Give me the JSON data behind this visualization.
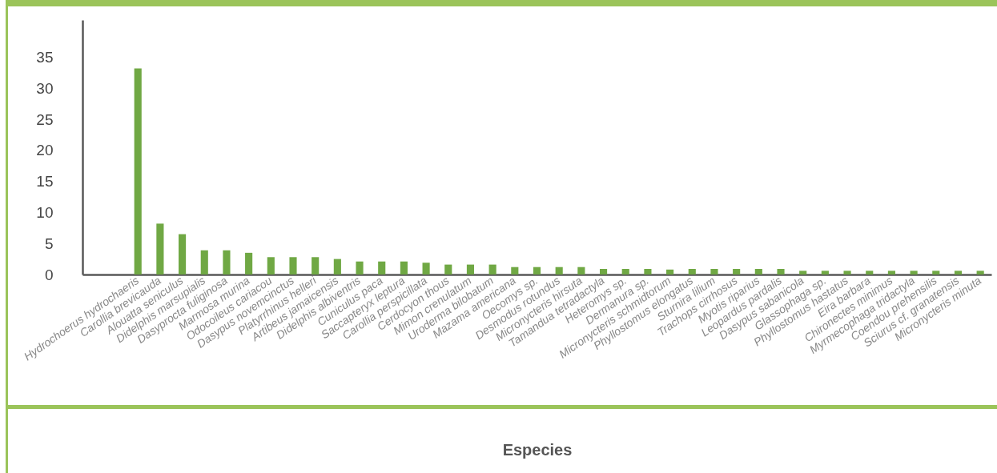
{
  "chart_data": {
    "type": "bar",
    "xlabel": "Especies",
    "categories": [
      null,
      null,
      "Hydrochoerus hydrochaeris",
      "Carollia brevicauda",
      "Alouatta seniculus",
      "Didelphis marsupialis",
      "Dasyprocta fuliginosa",
      "Marmosa murina",
      "Odocoileus cariacou",
      "Dasypus novemcinctus",
      "Platyrrhinus helleri",
      "Artibeus jamaicensis",
      "Didelphis albiventris",
      "Cuniculus paca",
      "Saccapteryx leptura",
      "Carollia perspicillata",
      "Cerdocyon thous",
      "Mimon crenulatum",
      "Uroderma bilobatum",
      "Mazama americana",
      "Oecomys sp.",
      "Desmodus rotundus",
      "Micronycteris hirsuta",
      "Tamandua tetradactyla",
      "Heteromys sp.",
      "Dermanura sp.",
      "Micronycteris schmidtorum",
      "Phyllostomus elongatus",
      "Sturnira lilium",
      "Trachops cirrhosus",
      "Myotis riparius",
      "Leopardus pardalis",
      "Dasypus sabanicola",
      "Glassophaga sp.",
      "Phyllostomus hastatus",
      "Eira barbara",
      "Chironectes minimus",
      "Myrmecophaga tridactyla",
      "Coendou prehensilis",
      "Sciurus cf. granatensis",
      "Micronycteris minuta"
    ],
    "values": [
      null,
      null,
      33.2,
      8.2,
      6.5,
      3.9,
      3.9,
      3.5,
      2.8,
      2.8,
      2.8,
      2.5,
      2.1,
      2.1,
      2.1,
      1.9,
      1.6,
      1.6,
      1.6,
      1.2,
      1.2,
      1.2,
      1.2,
      0.9,
      0.9,
      0.9,
      0.8,
      0.9,
      0.9,
      0.9,
      0.9,
      0.9,
      0.6,
      0.6,
      0.6,
      0.6,
      0.6,
      0.6,
      0.6,
      0.6,
      0.6
    ],
    "color": "#70a844",
    "ylim": [
      0,
      41
    ],
    "yticks": [
      0,
      5,
      10,
      15,
      20,
      25,
      30,
      35
    ],
    "grid": false
  }
}
